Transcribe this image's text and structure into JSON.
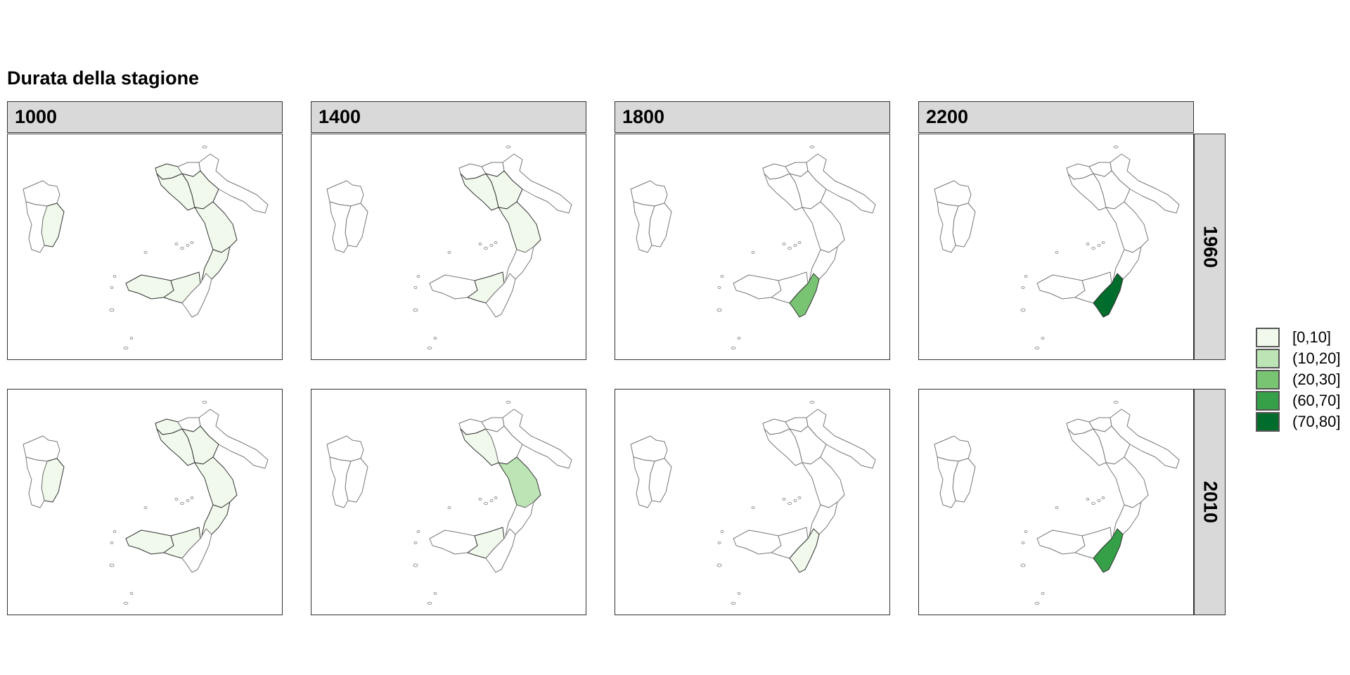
{
  "title": "Durata della stagione",
  "columns": [
    "1000",
    "1400",
    "1800",
    "2200"
  ],
  "rows": [
    "1960",
    "2010"
  ],
  "legend": [
    {
      "label": "[0,10]",
      "color": "#f0f9ec"
    },
    {
      "label": "(10,20]",
      "color": "#bde4b5"
    },
    {
      "label": "(20,30]",
      "color": "#79c473"
    },
    {
      "label": "(60,70]",
      "color": "#35a048"
    },
    {
      "label": "(70,80]",
      "color": "#006d2c"
    }
  ],
  "map_data": {
    "empty_color": "#ffffff",
    "regions": [
      "sardegna-nord",
      "sardegna-centro",
      "sardegna-sud",
      "campania-nord",
      "campania-sud",
      "molise",
      "puglia",
      "basilicata",
      "calabria-nord",
      "calabria-sud",
      "sicilia-ovest",
      "sicilia-centro",
      "sicilia-est"
    ],
    "panels": [
      {
        "row": "1960",
        "col": "1000",
        "filled": [
          {
            "region": "sardegna-centro",
            "class": 0
          },
          {
            "region": "campania-nord",
            "class": 0
          },
          {
            "region": "campania-sud",
            "class": 0
          },
          {
            "region": "basilicata",
            "class": 0
          },
          {
            "region": "calabria-nord",
            "class": 0
          },
          {
            "region": "calabria-sud",
            "class": 0
          },
          {
            "region": "sicilia-ovest",
            "class": 0
          },
          {
            "region": "sicilia-centro",
            "class": 0
          }
        ]
      },
      {
        "row": "1960",
        "col": "1400",
        "filled": [
          {
            "region": "campania-sud",
            "class": 0
          },
          {
            "region": "basilicata",
            "class": 0
          },
          {
            "region": "calabria-nord",
            "class": 0
          },
          {
            "region": "sicilia-centro",
            "class": 0
          }
        ]
      },
      {
        "row": "1960",
        "col": "1800",
        "filled": [
          {
            "region": "sicilia-est",
            "class": 2
          }
        ]
      },
      {
        "row": "1960",
        "col": "2200",
        "filled": [
          {
            "region": "sicilia-est",
            "class": 4
          }
        ]
      },
      {
        "row": "2010",
        "col": "1000",
        "filled": [
          {
            "region": "sardegna-centro",
            "class": 0
          },
          {
            "region": "campania-nord",
            "class": 0
          },
          {
            "region": "campania-sud",
            "class": 0
          },
          {
            "region": "basilicata",
            "class": 0
          },
          {
            "region": "calabria-nord",
            "class": 0
          },
          {
            "region": "calabria-sud",
            "class": 0
          },
          {
            "region": "sicilia-ovest",
            "class": 0
          },
          {
            "region": "sicilia-centro",
            "class": 0
          }
        ]
      },
      {
        "row": "2010",
        "col": "1400",
        "filled": [
          {
            "region": "campania-sud",
            "class": 0
          },
          {
            "region": "calabria-nord",
            "class": 1
          },
          {
            "region": "sicilia-centro",
            "class": 0
          }
        ]
      },
      {
        "row": "2010",
        "col": "1800",
        "filled": [
          {
            "region": "sicilia-est",
            "class": 0
          }
        ]
      },
      {
        "row": "2010",
        "col": "2200",
        "filled": [
          {
            "region": "sicilia-est",
            "class": 3
          }
        ]
      }
    ]
  }
}
